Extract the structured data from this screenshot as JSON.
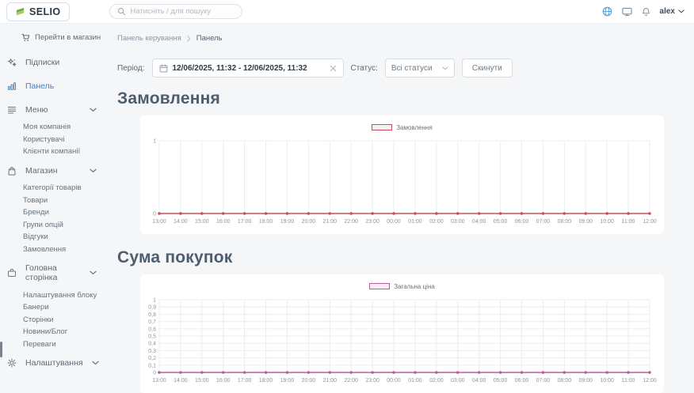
{
  "header": {
    "logo_text": "SELIO",
    "search_placeholder": "Натисніть / для пошуку",
    "user_name": "alex",
    "icons": [
      "globe-icon",
      "monitor-icon",
      "bell-icon"
    ]
  },
  "sidebar": {
    "store_link": {
      "label": "Перейти в магазин",
      "icon": "cart",
      "name": "go-to-store"
    },
    "groups": [
      {
        "label": "Підписки",
        "icon": "subscriptions",
        "name": "subscriptions",
        "active": false,
        "expandable": false,
        "children": []
      },
      {
        "label": "Панель",
        "icon": "dashboard",
        "name": "dashboard",
        "active": true,
        "expandable": false,
        "children": []
      },
      {
        "label": "Меню",
        "icon": "menu-lines",
        "name": "menu",
        "active": false,
        "expandable": true,
        "children": [
          {
            "label": "Моя компанія",
            "name": "my-company"
          },
          {
            "label": "Користувачі",
            "name": "users"
          },
          {
            "label": "Клієнти компанії",
            "name": "company-clients"
          }
        ]
      },
      {
        "label": "Магазин",
        "icon": "bag",
        "name": "store",
        "active": false,
        "expandable": true,
        "children": [
          {
            "label": "Категорії товарів",
            "name": "product-categories"
          },
          {
            "label": "Товари",
            "name": "products"
          },
          {
            "label": "Бренди",
            "name": "brands"
          },
          {
            "label": "Групи опцій",
            "name": "option-groups"
          },
          {
            "label": "Відгуки",
            "name": "reviews"
          },
          {
            "label": "Замовлення",
            "name": "orders"
          }
        ]
      },
      {
        "label": "Головна сторінка",
        "icon": "home-page",
        "name": "home-page",
        "active": false,
        "expandable": true,
        "children": [
          {
            "label": "Налаштування блоку",
            "name": "block-settings"
          },
          {
            "label": "Банери",
            "name": "banners"
          },
          {
            "label": "Сторінки",
            "name": "pages"
          },
          {
            "label": "Новини/Блог",
            "name": "news-blog"
          },
          {
            "label": "Переваги",
            "name": "benefits"
          }
        ]
      },
      {
        "label": "Налаштування",
        "icon": "gear",
        "name": "settings",
        "active": false,
        "expandable": true,
        "children": []
      }
    ]
  },
  "breadcrumb": {
    "items": [
      "Панель керування",
      "Панель"
    ]
  },
  "filters": {
    "period_label": "Період:",
    "period_value": "12/06/2025, 11:32 - 12/06/2025, 11:32",
    "status_label": "Статус:",
    "status_value": "Всі статуси",
    "reset_label": "Скинути"
  },
  "chart_data": [
    {
      "type": "line",
      "title": "Замовлення",
      "legend": "Замовлення",
      "line_color": "#c9505a",
      "legend_fill": "#f7eff4",
      "legend_position": "top",
      "grid": true,
      "x": [
        "13:00",
        "14:00",
        "15:00",
        "16:00",
        "17:00",
        "18:00",
        "19:00",
        "20:00",
        "21:00",
        "22:00",
        "23:00",
        "00:00",
        "01:00",
        "02:00",
        "03:00",
        "04:00",
        "05:00",
        "06:00",
        "07:00",
        "08:00",
        "09:00",
        "10:00",
        "11:00",
        "12:00"
      ],
      "values": [
        0,
        0,
        0,
        0,
        0,
        0,
        0,
        0,
        0,
        0,
        0,
        0,
        0,
        0,
        0,
        0,
        0,
        0,
        0,
        0,
        0,
        0,
        0,
        0
      ],
      "ylim": [
        0,
        1
      ],
      "y_ticks": [
        "1",
        "0"
      ]
    },
    {
      "type": "line",
      "title": "Сума покупок",
      "legend": "Загальна ціна",
      "line_color": "#bd5d96",
      "legend_fill": "#f7eff4",
      "legend_position": "top",
      "grid": true,
      "x": [
        "13:00",
        "14:00",
        "15:00",
        "16:00",
        "17:00",
        "18:00",
        "19:00",
        "20:00",
        "21:00",
        "22:00",
        "23:00",
        "00:00",
        "01:00",
        "02:00",
        "03:00",
        "04:00",
        "05:00",
        "06:00",
        "07:00",
        "08:00",
        "09:00",
        "10:00",
        "11:00",
        "12:00"
      ],
      "values": [
        0,
        0,
        0,
        0,
        0,
        0,
        0,
        0,
        0,
        0,
        0,
        0,
        0,
        0,
        0,
        0,
        0,
        0,
        0,
        0,
        0,
        0,
        0,
        0
      ],
      "ylim": [
        0,
        1
      ],
      "y_ticks": [
        "1",
        "0,9",
        "0,8",
        "0,7",
        "0,6",
        "0,5",
        "0,4",
        "0,3",
        "0,2",
        "0,1",
        "0"
      ]
    }
  ]
}
